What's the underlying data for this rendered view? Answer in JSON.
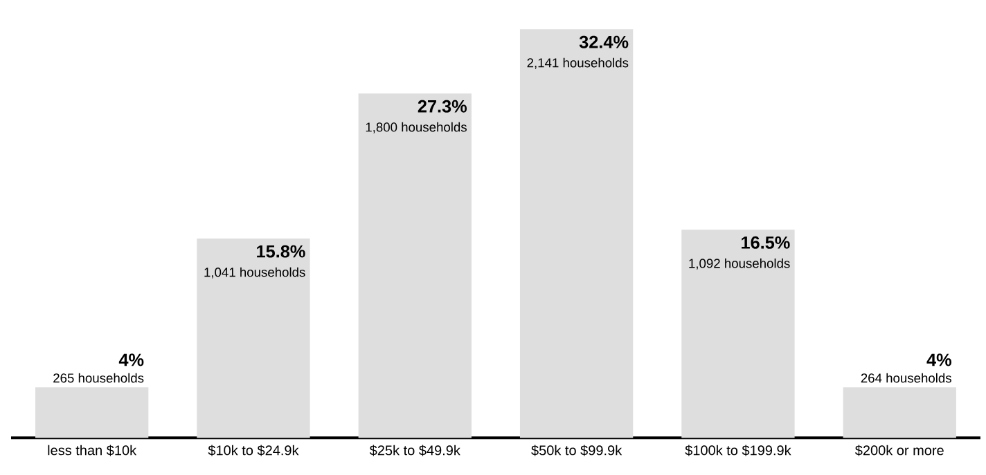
{
  "chart_data": {
    "type": "bar",
    "categories": [
      "less than $10k",
      "$10k to $24.9k",
      "$25k to $49.9k",
      "$50k to $99.9k",
      "$100k to $199.9k",
      "$200k or more"
    ],
    "values": [
      4,
      15.8,
      27.3,
      32.4,
      16.5,
      4
    ],
    "value_labels": [
      "4%",
      "15.8%",
      "27.3%",
      "32.4%",
      "16.5%",
      "4%"
    ],
    "color": "#dedede",
    "tick_labels": "x",
    "annotations": [
      {
        "text": "265 households",
        "x": "less than $10k",
        "y": 4
      },
      {
        "text": "1,041 households",
        "x": "$10k to $24.9k",
        "y": 15.8
      },
      {
        "text": "1,800 households",
        "x": "$25k to $49.9k",
        "y": 27.3
      },
      {
        "text": "2,141 households",
        "x": "$50k to $99.9k",
        "y": 32.4
      },
      {
        "text": "1,092 households",
        "x": "$100k to $199.9k",
        "y": 16.5
      },
      {
        "text": "264 households",
        "x": "$200k or more",
        "y": 4
      }
    ]
  }
}
